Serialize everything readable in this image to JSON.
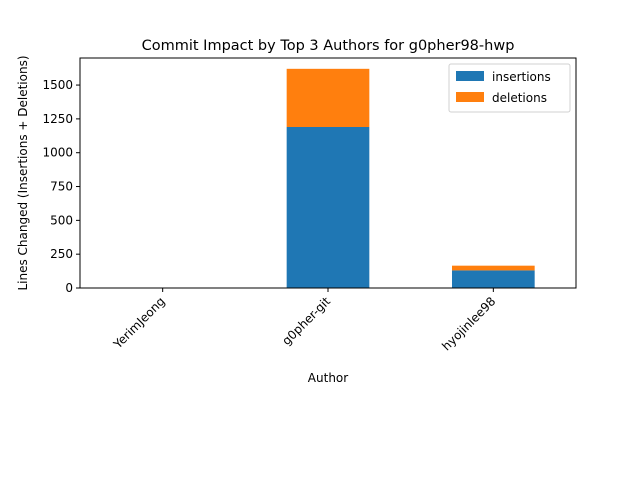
{
  "chart_data": {
    "type": "bar",
    "stacked": true,
    "title": "Commit Impact by Top 3 Authors for g0pher98-hwp",
    "xlabel": "Author",
    "ylabel": "Lines Changed (Insertions + Deletions)",
    "categories": [
      "YerimJeong",
      "g0pher-git",
      "hyojinlee98"
    ],
    "series": [
      {
        "name": "insertions",
        "values": [
          0,
          1190,
          130
        ],
        "color": "#1f77b4"
      },
      {
        "name": "deletions",
        "values": [
          0,
          430,
          35
        ],
        "color": "#ff7f0e"
      }
    ],
    "ylim": [
      0,
      1700
    ],
    "yticks": [
      0,
      250,
      500,
      750,
      1000,
      1250,
      1500
    ],
    "grid": false,
    "legend_position": "top-right"
  }
}
